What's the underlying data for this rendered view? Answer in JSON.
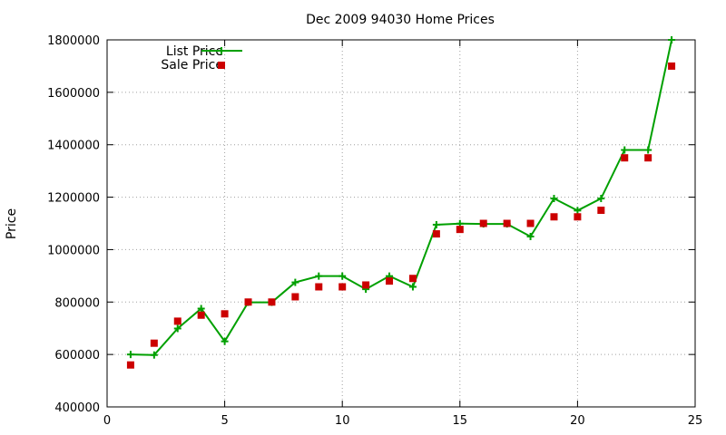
{
  "chart_data": {
    "type": "line",
    "title": "Dec 2009 94030 Home Prices",
    "xlabel": "",
    "ylabel": "Price",
    "xlim": [
      0,
      25
    ],
    "ylim": [
      400000,
      1800000
    ],
    "xticks": [
      0,
      5,
      10,
      15,
      20,
      25
    ],
    "yticks": [
      400000,
      600000,
      800000,
      1000000,
      1200000,
      1400000,
      1600000,
      1800000
    ],
    "grid": true,
    "legend_position": "top-left",
    "series": [
      {
        "name": "List Price",
        "style": "line-with-plus-markers",
        "color": "#00a000",
        "x": [
          1,
          2,
          3,
          4,
          5,
          6,
          7,
          8,
          9,
          10,
          11,
          12,
          13,
          14,
          15,
          16,
          17,
          18,
          19,
          20,
          21,
          22,
          23,
          24
        ],
        "values": [
          600000,
          598000,
          699000,
          775000,
          650000,
          799000,
          799000,
          875000,
          899000,
          899000,
          849000,
          899000,
          858000,
          1095000,
          1099000,
          1098000,
          1098000,
          1050000,
          1195000,
          1149000,
          1195000,
          1380000,
          1380000,
          1800000
        ]
      },
      {
        "name": "Sale Price",
        "style": "square-markers",
        "color": "#cc0000",
        "x": [
          1,
          2,
          3,
          4,
          5,
          6,
          7,
          8,
          9,
          10,
          11,
          12,
          13,
          14,
          15,
          16,
          17,
          18,
          19,
          20,
          21,
          22,
          23,
          24
        ],
        "values": [
          560000,
          643000,
          727000,
          750000,
          755000,
          800000,
          800000,
          820000,
          858000,
          858000,
          865000,
          880000,
          890000,
          1060000,
          1077000,
          1100000,
          1100000,
          1100000,
          1125000,
          1125000,
          1150000,
          1350000,
          1350000,
          1700000
        ]
      }
    ]
  }
}
